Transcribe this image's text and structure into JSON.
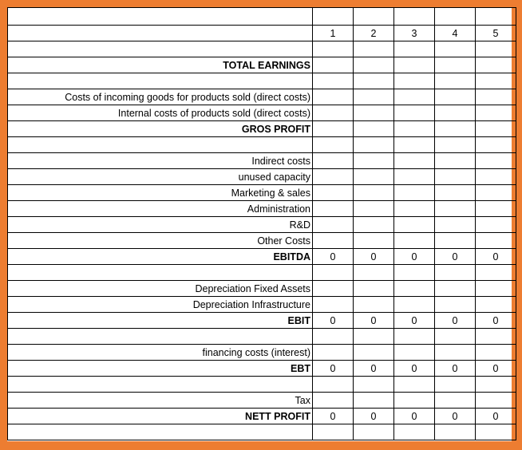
{
  "header": {
    "periods": [
      "1",
      "2",
      "3",
      "4",
      "5"
    ]
  },
  "rows": [
    {
      "label": "",
      "bold": false,
      "values": [
        "",
        "",
        "",
        "",
        ""
      ]
    },
    {
      "label": "TOTAL  EARNINGS",
      "bold": true,
      "values": [
        "",
        "",
        "",
        "",
        ""
      ]
    },
    {
      "label": "",
      "bold": false,
      "values": [
        "",
        "",
        "",
        "",
        ""
      ]
    },
    {
      "label": "Costs of incoming goods for products sold (direct costs)",
      "bold": false,
      "values": [
        "",
        "",
        "",
        "",
        ""
      ]
    },
    {
      "label": "Internal costs of products sold (direct costs)",
      "bold": false,
      "values": [
        "",
        "",
        "",
        "",
        ""
      ]
    },
    {
      "label": "GROS PROFIT",
      "bold": true,
      "values": [
        "",
        "",
        "",
        "",
        ""
      ]
    },
    {
      "label": "",
      "bold": false,
      "values": [
        "",
        "",
        "",
        "",
        ""
      ]
    },
    {
      "label": "Indirect costs",
      "bold": false,
      "values": [
        "",
        "",
        "",
        "",
        ""
      ]
    },
    {
      "label": "unused capacity",
      "bold": false,
      "values": [
        "",
        "",
        "",
        "",
        ""
      ]
    },
    {
      "label": "Marketing & sales",
      "bold": false,
      "values": [
        "",
        "",
        "",
        "",
        ""
      ]
    },
    {
      "label": "Administration",
      "bold": false,
      "values": [
        "",
        "",
        "",
        "",
        ""
      ]
    },
    {
      "label": "R&D",
      "bold": false,
      "values": [
        "",
        "",
        "",
        "",
        ""
      ]
    },
    {
      "label": "Other Costs",
      "bold": false,
      "values": [
        "",
        "",
        "",
        "",
        ""
      ]
    },
    {
      "label": "EBITDA",
      "bold": true,
      "values": [
        "0",
        "0",
        "0",
        "0",
        "0"
      ]
    },
    {
      "label": "",
      "bold": false,
      "values": [
        "",
        "",
        "",
        "",
        ""
      ]
    },
    {
      "label": "Depreciation Fixed Assets",
      "bold": false,
      "values": [
        "",
        "",
        "",
        "",
        ""
      ]
    },
    {
      "label": "Depreciation Infrastructure",
      "bold": false,
      "values": [
        "",
        "",
        "",
        "",
        ""
      ]
    },
    {
      "label": "EBIT",
      "bold": true,
      "values": [
        "0",
        "0",
        "0",
        "0",
        "0"
      ]
    },
    {
      "label": "",
      "bold": false,
      "values": [
        "",
        "",
        "",
        "",
        ""
      ]
    },
    {
      "label": "financing costs (interest)",
      "bold": false,
      "values": [
        "",
        "",
        "",
        "",
        ""
      ]
    },
    {
      "label": "EBT",
      "bold": true,
      "values": [
        "0",
        "0",
        "0",
        "0",
        "0"
      ]
    },
    {
      "label": "",
      "bold": false,
      "values": [
        "",
        "",
        "",
        "",
        ""
      ]
    },
    {
      "label": "Tax",
      "bold": false,
      "values": [
        "",
        "",
        "",
        "",
        ""
      ]
    },
    {
      "label": "NETT PROFIT",
      "bold": true,
      "values": [
        "0",
        "0",
        "0",
        "0",
        "0"
      ]
    },
    {
      "label": "",
      "bold": false,
      "values": [
        "",
        "",
        "",
        "",
        ""
      ]
    }
  ],
  "colors": {
    "frame": "#ED7D31",
    "grid": "#000000",
    "cell_bg": "#FFFFFF"
  }
}
